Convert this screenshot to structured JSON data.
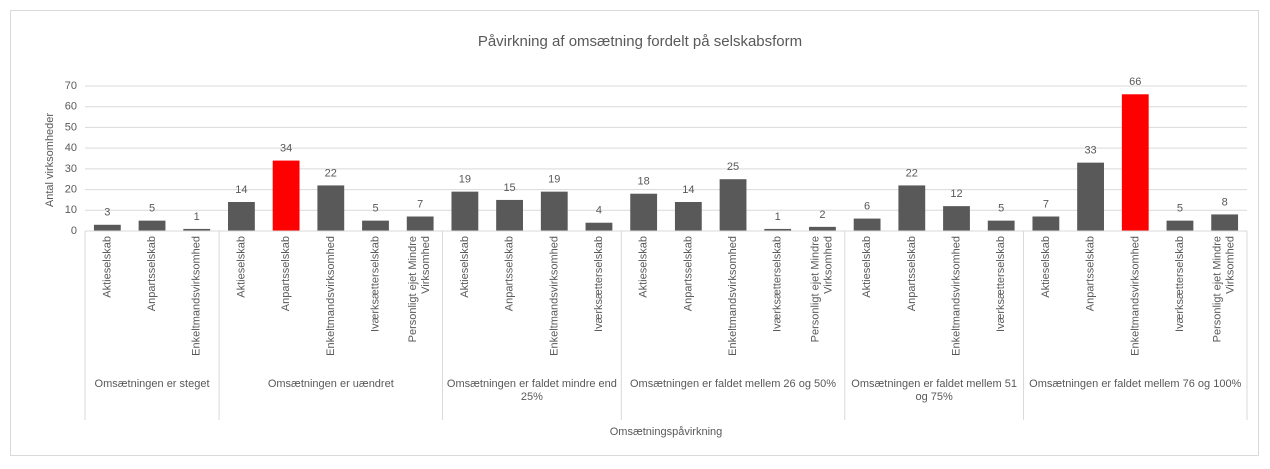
{
  "chart_data": {
    "type": "bar",
    "title": "Påvirkning af omsætning fordelt på selskabsform",
    "y_label": "Antal virksomheder",
    "x_label": "Omsætningspåvirkning",
    "ylim": [
      0,
      70
    ],
    "yticks": [
      0,
      10,
      20,
      30,
      40,
      50,
      60,
      70
    ],
    "grid": true,
    "groups": [
      {
        "label": "Omsætningen er steget",
        "categories": [
          "Aktieselskab",
          "Anpartsselskab",
          "Enkeltmandsvirksomhed"
        ],
        "values": [
          3,
          5,
          1
        ],
        "colors": [
          "#595959",
          "#595959",
          "#595959"
        ]
      },
      {
        "label": "Omsætningen er uændret",
        "categories": [
          "Aktieselskab",
          "Anpartsselskab",
          "Enkeltmandsvirksomhed",
          "Iværksætterselskab",
          "Personligt ejet Mindre Virksomhed"
        ],
        "values": [
          14,
          34,
          22,
          5,
          7
        ],
        "colors": [
          "#595959",
          "#ff0000",
          "#595959",
          "#595959",
          "#595959"
        ]
      },
      {
        "label": "Omsætningen er faldet mindre end 25%",
        "categories": [
          "Aktieselskab",
          "Anpartsselskab",
          "Enkeltmandsvirksomhed",
          "Iværksætterselskab"
        ],
        "values": [
          19,
          15,
          19,
          4
        ],
        "colors": [
          "#595959",
          "#595959",
          "#595959",
          "#595959"
        ]
      },
      {
        "label": "Omsætningen er faldet mellem 26 og 50%",
        "categories": [
          "Aktieselskab",
          "Anpartsselskab",
          "Enkeltmandsvirksomhed",
          "Iværksætterselskab",
          "Personligt ejet Mindre Virksomhed"
        ],
        "values": [
          18,
          14,
          25,
          1,
          2
        ],
        "colors": [
          "#595959",
          "#595959",
          "#595959",
          "#595959",
          "#595959"
        ]
      },
      {
        "label": "Omsætningen er faldet mellem 51 og 75%",
        "categories": [
          "Aktieselskab",
          "Anpartsselskab",
          "Enkeltmandsvirksomhed",
          "Iværksætterselskab"
        ],
        "values": [
          6,
          22,
          12,
          5
        ],
        "colors": [
          "#595959",
          "#595959",
          "#595959",
          "#595959"
        ]
      },
      {
        "label": "Omsætningen er faldet mellem 76 og 100%",
        "categories": [
          "Aktieselskab",
          "Anpartsselskab",
          "Enkeltmandsvirksomhed",
          "Iværksætterselskab",
          "Personligt ejet Mindre Virksomhed"
        ],
        "values": [
          7,
          33,
          66,
          5,
          8
        ],
        "colors": [
          "#595959",
          "#595959",
          "#ff0000",
          "#595959",
          "#595959"
        ]
      }
    ]
  }
}
